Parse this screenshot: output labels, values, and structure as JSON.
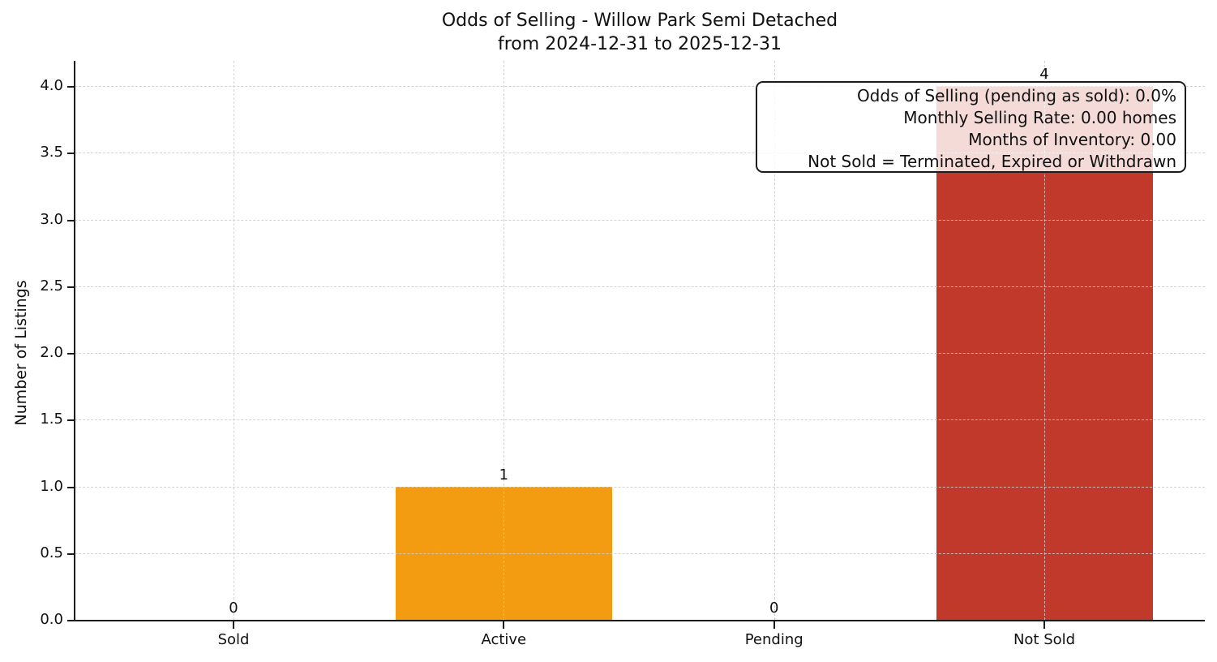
{
  "title": {
    "line1": "Odds of Selling - Willow Park Semi Detached",
    "line2": "from 2024-12-31 to 2025-12-31"
  },
  "y_axis": {
    "label": "Number of Listings",
    "ticks": [
      "0.0",
      "0.5",
      "1.0",
      "1.5",
      "2.0",
      "2.5",
      "3.0",
      "3.5",
      "4.0"
    ]
  },
  "annotation": {
    "lines": [
      "Odds of Selling (pending as sold): 0.0%",
      "Monthly Selling Rate: 0.00 homes",
      "Months of Inventory: 0.00",
      "Not Sold = Terminated, Expired or Withdrawn"
    ]
  },
  "chart_data": {
    "type": "bar",
    "title": "Odds of Selling - Willow Park Semi Detached\nfrom 2024-12-31 to 2025-12-31",
    "categories": [
      "Sold",
      "Active",
      "Pending",
      "Not Sold"
    ],
    "values": [
      0,
      1,
      0,
      4
    ],
    "bar_value_labels": [
      "0",
      "1",
      "0",
      "4"
    ],
    "bar_colors": [
      null,
      "#f39c12",
      null,
      "#c0392b"
    ],
    "xlabel": "",
    "ylabel": "Number of Listings",
    "ylim": [
      0,
      4.2
    ],
    "yticks": [
      0.0,
      0.5,
      1.0,
      1.5,
      2.0,
      2.5,
      3.0,
      3.5,
      4.0
    ],
    "grid": true,
    "grid_style": "dashed",
    "grid_color": "#cbcbcb",
    "axis_color": "#1c1c1c",
    "annotation_box_lines": [
      "Odds of Selling (pending as sold): 0.0%",
      "Monthly Selling Rate: 0.00 homes",
      "Months of Inventory: 0.00",
      "Not Sold = Terminated, Expired or Withdrawn"
    ],
    "legend": null
  }
}
